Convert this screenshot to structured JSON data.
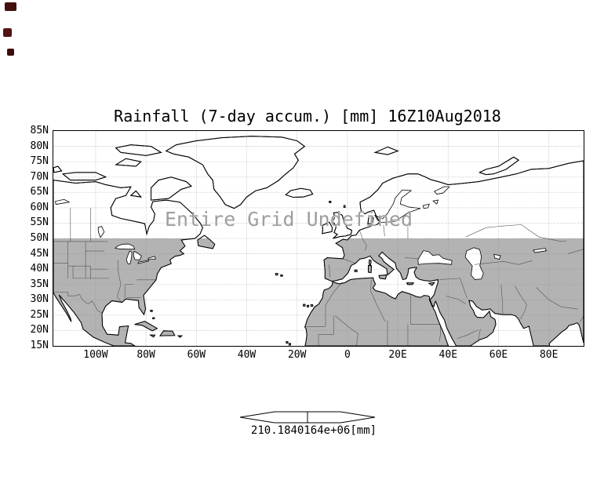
{
  "title": "Rainfall (7-day accum.) [mm] 16Z10Aug2018",
  "map": {
    "overlay_text": "Entire Grid Undefined",
    "lat_labels": [
      "85N",
      "80N",
      "75N",
      "70N",
      "65N",
      "60N",
      "55N",
      "50N",
      "45N",
      "40N",
      "35N",
      "30N",
      "25N",
      "20N",
      "15N"
    ],
    "lon_labels": [
      "100W",
      "80W",
      "60W",
      "40W",
      "20W",
      "0",
      "20E",
      "40E",
      "60E",
      "80E"
    ]
  },
  "colorbar": {
    "value_label": "210.1840164e+06",
    "units_label": "[mm]"
  },
  "colors": {
    "background": "#ffffff",
    "undefined_shade": "#b3b3b3",
    "coastline": "#000000",
    "gridline": "#888888",
    "overlay_text": "#9e9e9e"
  },
  "chart_data": {
    "type": "map",
    "projection": "equirectangular lat/lon",
    "variable": "Rainfall (7-day accum.)",
    "units": "mm",
    "valid_time_label": "16Z10Aug2018",
    "lat_tick_labels": [
      "85N",
      "80N",
      "75N",
      "70N",
      "65N",
      "60N",
      "55N",
      "50N",
      "45N",
      "40N",
      "35N",
      "30N",
      "25N",
      "20N",
      "15N"
    ],
    "lon_tick_labels": [
      "100W",
      "80W",
      "60W",
      "40W",
      "20W",
      "0",
      "20E",
      "40E",
      "60E",
      "80E"
    ],
    "lat_range": [
      15,
      85
    ],
    "grid": "dotted graticule every 5 deg lat / 20 deg lon",
    "data_status": "Entire Grid Undefined (no rainfall values plotted)",
    "shading": "land areas south of 50N shaded gray; oceans and land north of 50N white",
    "colorbar_labels": [
      "210.1840164e+06",
      "[mm]"
    ]
  }
}
